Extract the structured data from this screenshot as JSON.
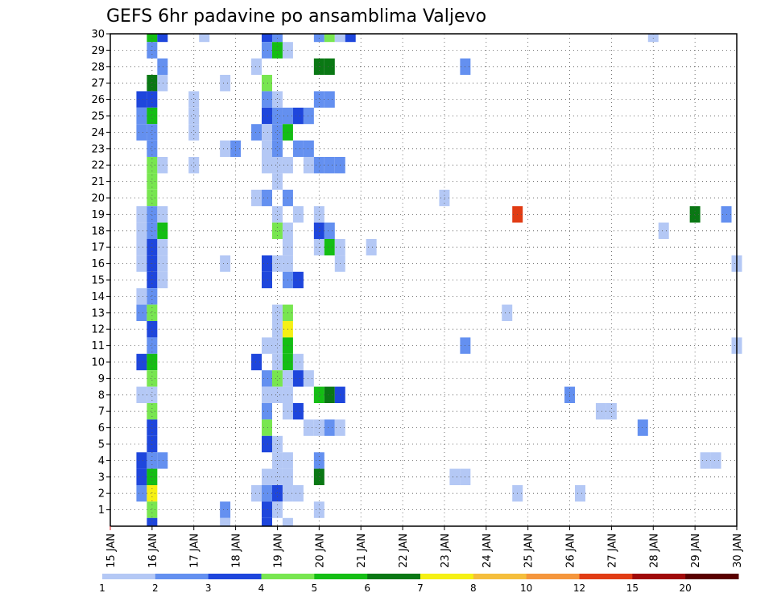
{
  "chart_data": {
    "type": "heatmap",
    "title": "GEFS 6hr padavine po ansamblima Valjevo",
    "xlabel": "",
    "ylabel": "",
    "x_tick_labels": [
      "15 JAN",
      "16 JAN",
      "17 JAN",
      "18 JAN",
      "19 JAN",
      "20 JAN",
      "21 JAN",
      "22 JAN",
      "23 JAN",
      "24 JAN",
      "25 JAN",
      "26 JAN",
      "27 JAN",
      "28 JAN",
      "29 JAN",
      "30 JAN"
    ],
    "y_tick_labels": [
      "1",
      "2",
      "3",
      "4",
      "5",
      "6",
      "7",
      "8",
      "9",
      "10",
      "11",
      "12",
      "13",
      "14",
      "15",
      "16",
      "17",
      "18",
      "19",
      "20",
      "21",
      "22",
      "23",
      "24",
      "25",
      "26",
      "27",
      "28",
      "29",
      "30"
    ],
    "xlim_days": [
      15,
      30
    ],
    "ylim_members": [
      0,
      30
    ],
    "time_step_hours": 6,
    "grid": true,
    "colorbar": {
      "labels": [
        "1",
        "2",
        "3",
        "4",
        "5",
        "6",
        "7",
        "8",
        "10",
        "12",
        "15",
        "20"
      ],
      "colors": [
        "#b4c8f5",
        "#6490f0",
        "#1e46dc",
        "#78e650",
        "#14be14",
        "#0a7814",
        "#f5f014",
        "#f5be3c",
        "#f5963c",
        "#e13c14",
        "#a00a0a",
        "#5a0000"
      ]
    },
    "cells": [
      [
        30,
        16,
        5
      ],
      [
        30,
        16.25,
        3
      ],
      [
        30,
        17.25,
        1
      ],
      [
        30,
        18.75,
        3
      ],
      [
        30,
        19,
        2
      ],
      [
        30,
        20,
        2
      ],
      [
        30,
        20.25,
        4
      ],
      [
        30,
        20.5,
        1
      ],
      [
        30,
        20.75,
        3
      ],
      [
        30,
        28,
        1
      ],
      [
        29,
        16,
        2
      ],
      [
        29,
        18.75,
        2
      ],
      [
        29,
        19,
        5
      ],
      [
        29,
        19.25,
        1
      ],
      [
        28,
        16.25,
        2
      ],
      [
        28,
        18.5,
        1
      ],
      [
        28,
        20,
        6
      ],
      [
        28,
        20.25,
        6
      ],
      [
        28,
        23.5,
        2
      ],
      [
        27,
        16,
        6
      ],
      [
        27,
        16.25,
        1
      ],
      [
        27,
        17.75,
        1
      ],
      [
        27,
        18.75,
        4
      ],
      [
        26,
        15.75,
        3
      ],
      [
        26,
        16,
        3
      ],
      [
        26,
        17,
        1
      ],
      [
        26,
        18.75,
        2
      ],
      [
        26,
        19,
        1
      ],
      [
        26,
        20,
        2
      ],
      [
        26,
        20.25,
        2
      ],
      [
        25,
        15.75,
        2
      ],
      [
        25,
        16,
        5
      ],
      [
        25,
        17,
        1
      ],
      [
        25,
        18.75,
        3
      ],
      [
        25,
        19,
        2
      ],
      [
        25,
        19.25,
        2
      ],
      [
        25,
        19.5,
        3
      ],
      [
        25,
        19.75,
        2
      ],
      [
        24,
        15.75,
        2
      ],
      [
        24,
        16,
        2
      ],
      [
        24,
        17,
        1
      ],
      [
        24,
        18.5,
        2
      ],
      [
        24,
        18.75,
        1
      ],
      [
        24,
        19,
        2
      ],
      [
        24,
        19.25,
        5
      ],
      [
        23,
        16,
        2
      ],
      [
        23,
        17.75,
        1
      ],
      [
        23,
        18,
        2
      ],
      [
        23,
        18.75,
        1
      ],
      [
        23,
        19,
        2
      ],
      [
        23,
        19.5,
        2
      ],
      [
        23,
        19.75,
        2
      ],
      [
        22,
        16,
        4
      ],
      [
        22,
        16.25,
        1
      ],
      [
        22,
        17,
        1
      ],
      [
        22,
        18.75,
        1
      ],
      [
        22,
        19,
        1
      ],
      [
        22,
        19.25,
        1
      ],
      [
        22,
        19.75,
        1
      ],
      [
        22,
        20,
        2
      ],
      [
        22,
        20.25,
        2
      ],
      [
        22,
        20.5,
        2
      ],
      [
        21,
        16,
        4
      ],
      [
        21,
        19,
        1
      ],
      [
        20,
        16,
        4
      ],
      [
        20,
        18.5,
        1
      ],
      [
        20,
        18.75,
        2
      ],
      [
        20,
        19.25,
        2
      ],
      [
        20,
        23,
        1
      ],
      [
        19,
        15.75,
        1
      ],
      [
        19,
        16,
        2
      ],
      [
        19,
        16.25,
        1
      ],
      [
        19,
        19,
        1
      ],
      [
        19,
        19.5,
        1
      ],
      [
        19,
        20,
        1
      ],
      [
        19,
        24.75,
        10
      ],
      [
        19,
        29,
        6
      ],
      [
        19,
        29.75,
        2
      ],
      [
        18,
        15.75,
        1
      ],
      [
        18,
        16,
        2
      ],
      [
        18,
        16.25,
        5
      ],
      [
        18,
        19,
        4
      ],
      [
        18,
        19.25,
        1
      ],
      [
        18,
        20,
        3
      ],
      [
        18,
        20.25,
        2
      ],
      [
        18,
        28.25,
        1
      ],
      [
        17,
        15.75,
        1
      ],
      [
        17,
        16,
        3
      ],
      [
        17,
        16.25,
        1
      ],
      [
        17,
        19.25,
        1
      ],
      [
        17,
        20,
        1
      ],
      [
        17,
        20.25,
        5
      ],
      [
        17,
        20.5,
        1
      ],
      [
        17,
        21.25,
        1
      ],
      [
        16,
        15.75,
        1
      ],
      [
        16,
        16,
        3
      ],
      [
        16,
        16.25,
        1
      ],
      [
        16,
        17.75,
        1
      ],
      [
        16,
        18.75,
        3
      ],
      [
        16,
        19,
        1
      ],
      [
        16,
        19.25,
        1
      ],
      [
        16,
        20.5,
        1
      ],
      [
        16,
        30,
        1
      ],
      [
        15,
        16,
        3
      ],
      [
        15,
        16.25,
        1
      ],
      [
        15,
        18.75,
        3
      ],
      [
        15,
        19.25,
        2
      ],
      [
        15,
        19.5,
        3
      ],
      [
        14,
        16,
        2
      ],
      [
        14,
        15.75,
        1
      ],
      [
        13,
        15.75,
        2
      ],
      [
        13,
        16,
        4
      ],
      [
        13,
        19,
        1
      ],
      [
        13,
        19.25,
        4
      ],
      [
        13,
        24.5,
        1
      ],
      [
        12,
        16,
        3
      ],
      [
        12,
        19,
        1
      ],
      [
        12,
        19.25,
        7
      ],
      [
        11,
        16,
        2
      ],
      [
        11,
        18.75,
        1
      ],
      [
        11,
        19,
        1
      ],
      [
        11,
        19.25,
        5
      ],
      [
        11,
        23.5,
        2
      ],
      [
        11,
        30,
        1
      ],
      [
        10,
        15.75,
        3
      ],
      [
        10,
        16,
        5
      ],
      [
        10,
        18.5,
        3
      ],
      [
        10,
        19,
        1
      ],
      [
        10,
        19.25,
        5
      ],
      [
        10,
        19.5,
        1
      ],
      [
        9,
        16,
        4
      ],
      [
        9,
        18.75,
        2
      ],
      [
        9,
        19,
        4
      ],
      [
        9,
        19.25,
        1
      ],
      [
        9,
        19.5,
        3
      ],
      [
        9,
        19.75,
        1
      ],
      [
        8,
        15.75,
        1
      ],
      [
        8,
        16,
        1
      ],
      [
        8,
        18.75,
        1
      ],
      [
        8,
        19,
        1
      ],
      [
        8,
        19.25,
        1
      ],
      [
        8,
        20,
        5
      ],
      [
        8,
        20.25,
        6
      ],
      [
        8,
        20.5,
        3
      ],
      [
        8,
        26,
        2
      ],
      [
        7,
        16,
        4
      ],
      [
        7,
        18.75,
        2
      ],
      [
        7,
        19.25,
        1
      ],
      [
        7,
        19.5,
        3
      ],
      [
        7,
        26.75,
        1
      ],
      [
        7,
        27,
        1
      ],
      [
        6,
        16,
        3
      ],
      [
        6,
        18.75,
        4
      ],
      [
        6,
        19.75,
        1
      ],
      [
        6,
        20,
        1
      ],
      [
        6,
        20.25,
        2
      ],
      [
        6,
        20.5,
        1
      ],
      [
        6,
        27.75,
        2
      ],
      [
        5,
        16,
        3
      ],
      [
        5,
        18.75,
        3
      ],
      [
        5,
        19,
        1
      ],
      [
        4,
        15.75,
        3
      ],
      [
        4,
        16,
        2
      ],
      [
        4,
        16.25,
        2
      ],
      [
        4,
        19,
        1
      ],
      [
        4,
        19.25,
        1
      ],
      [
        4,
        20,
        2
      ],
      [
        4,
        29.25,
        1
      ],
      [
        4,
        29.5,
        1
      ],
      [
        3,
        15.75,
        3
      ],
      [
        3,
        16,
        5
      ],
      [
        3,
        18.75,
        1
      ],
      [
        3,
        19,
        1
      ],
      [
        3,
        19.25,
        1
      ],
      [
        3,
        20,
        6
      ],
      [
        3,
        23.25,
        1
      ],
      [
        3,
        23.5,
        1
      ],
      [
        2,
        15.75,
        2
      ],
      [
        2,
        16,
        7
      ],
      [
        2,
        18.5,
        1
      ],
      [
        2,
        18.75,
        2
      ],
      [
        2,
        19,
        3
      ],
      [
        2,
        19.25,
        1
      ],
      [
        2,
        19.5,
        1
      ],
      [
        2,
        24.75,
        1
      ],
      [
        2,
        26.25,
        1
      ],
      [
        1,
        16,
        4
      ],
      [
        1,
        17.75,
        2
      ],
      [
        1,
        18.75,
        3
      ],
      [
        1,
        19,
        1
      ],
      [
        1,
        20,
        1
      ],
      [
        0,
        16,
        3
      ],
      [
        0,
        17.75,
        1
      ],
      [
        0,
        18.75,
        3
      ],
      [
        0,
        19.25,
        1
      ]
    ]
  }
}
